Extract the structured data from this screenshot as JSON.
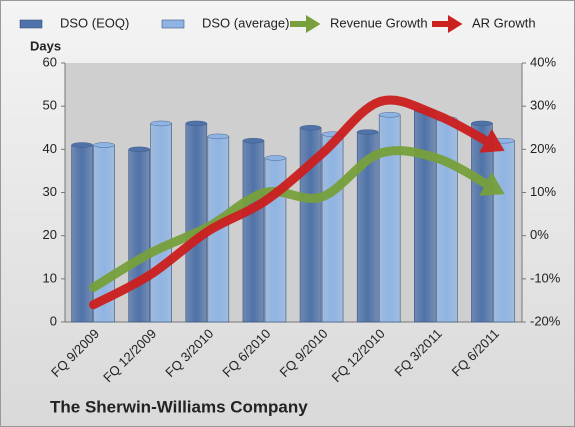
{
  "chart_data": {
    "type": "bar-line",
    "title": "The Sherwin-Williams Company",
    "y_label": "Days",
    "categories": [
      "FQ 9/2009",
      "FQ 12/2009",
      "FQ 3/2010",
      "FQ 6/2010",
      "FQ 9/2010",
      "FQ 12/2010",
      "FQ 3/2011",
      "FQ 6/2011"
    ],
    "series": [
      {
        "name": "DSO (EOQ)",
        "type": "bar",
        "color": "#4f72a8",
        "values": [
          41,
          40,
          46,
          42,
          45,
          44,
          49,
          46
        ]
      },
      {
        "name": "DSO (average)",
        "type": "bar",
        "color": "#8fb4e3",
        "values": [
          41,
          46,
          43,
          38,
          43.5,
          48,
          47,
          42
        ]
      },
      {
        "name": "Revenue Growth",
        "type": "arrow",
        "axis": "y2",
        "color": "#77a03c",
        "values": [
          -12,
          -4,
          2,
          10,
          9,
          19,
          18,
          11
        ]
      },
      {
        "name": "AR Growth",
        "type": "arrow",
        "axis": "y2",
        "color": "#cc1f1f",
        "values": [
          -16,
          -9,
          1,
          8,
          19,
          31,
          28,
          21
        ]
      }
    ],
    "ylim": [
      0,
      60
    ],
    "yticks": [
      0,
      10,
      20,
      30,
      40,
      50,
      60
    ],
    "y2lim": [
      -20,
      40
    ],
    "y2ticks": [
      {
        "value": -20,
        "label": "-20%"
      },
      {
        "value": -10,
        "label": "-10%"
      },
      {
        "value": 0,
        "label": "0%"
      },
      {
        "value": 10,
        "label": "10%"
      },
      {
        "value": 20,
        "label": "20%"
      },
      {
        "value": 30,
        "label": "30%"
      },
      {
        "value": 40,
        "label": "40%"
      }
    ],
    "grid": false
  }
}
